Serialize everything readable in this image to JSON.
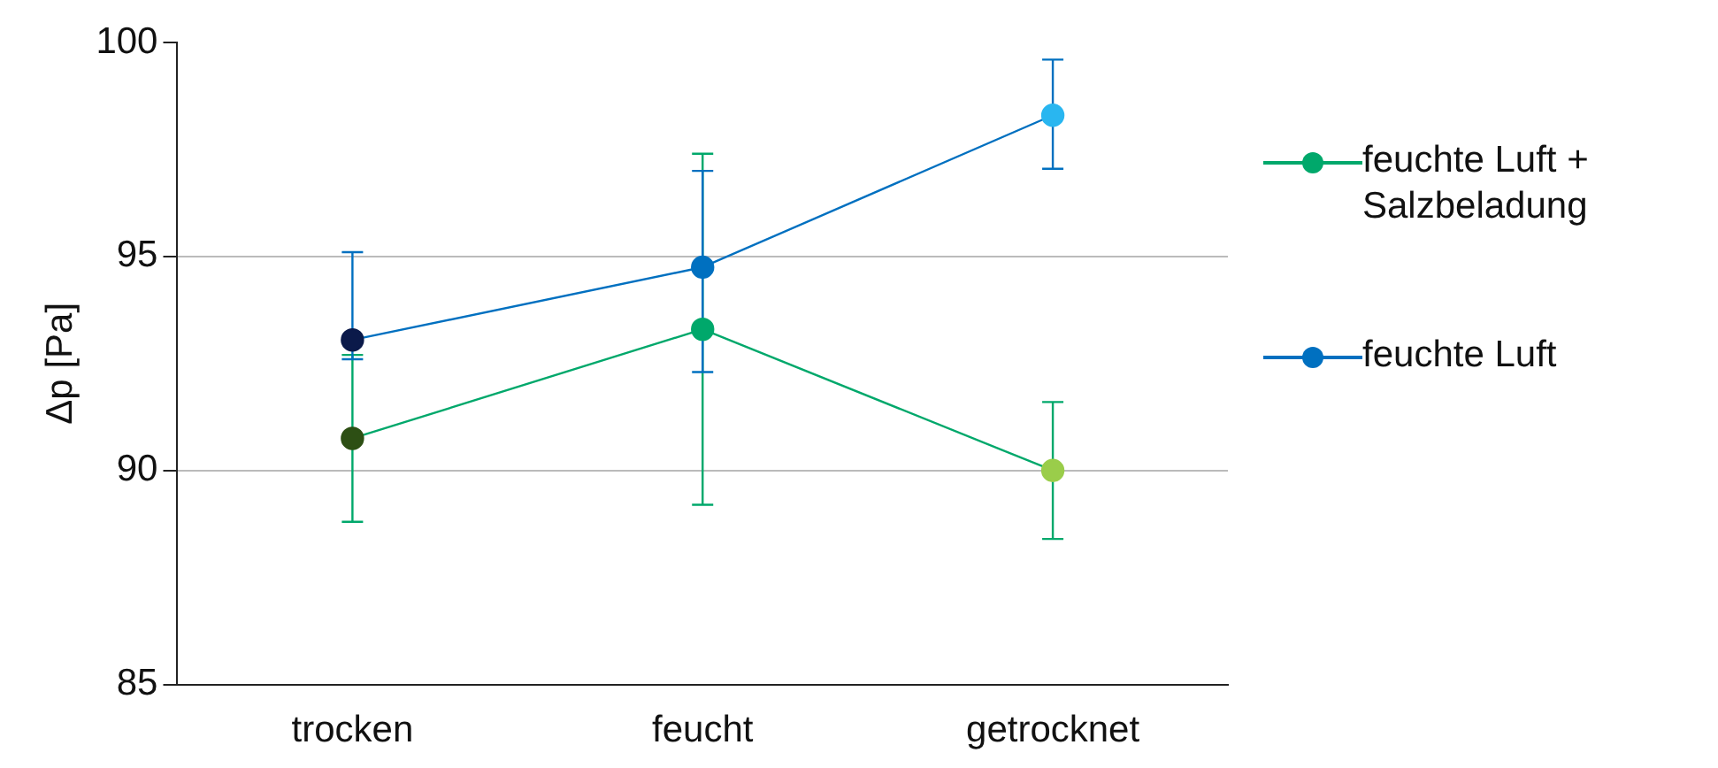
{
  "chart_data": {
    "type": "line",
    "ylabel": "Δp [Pa]",
    "categories": [
      "trocken",
      "feucht",
      "getrocknet"
    ],
    "series": [
      {
        "name": "feuchte Luft + Salzbeladung",
        "color": "#00a86b",
        "colors": [
          "#2d4f14",
          "#00a86b",
          "#9acd4a"
        ],
        "values": [
          90.75,
          93.3,
          90.0
        ],
        "errors": [
          1.95,
          [
            89.2,
            97.4
          ],
          [
            88.4,
            91.6
          ]
        ]
      },
      {
        "name": "feuchte Luft",
        "color": "#0070c0",
        "colors": [
          "#0b1a4a",
          "#0070c0",
          "#29b6f0"
        ],
        "values": [
          93.05,
          94.75,
          98.3
        ],
        "errors": [
          [
            92.6,
            95.1
          ],
          [
            92.3,
            97.0
          ],
          [
            97.05,
            99.6
          ]
        ]
      }
    ],
    "ylim": [
      85,
      100
    ],
    "yticks": [
      85,
      90,
      95,
      100
    ],
    "grid": "y",
    "legend": "right",
    "marker": "circle",
    "line_style": "solid"
  }
}
